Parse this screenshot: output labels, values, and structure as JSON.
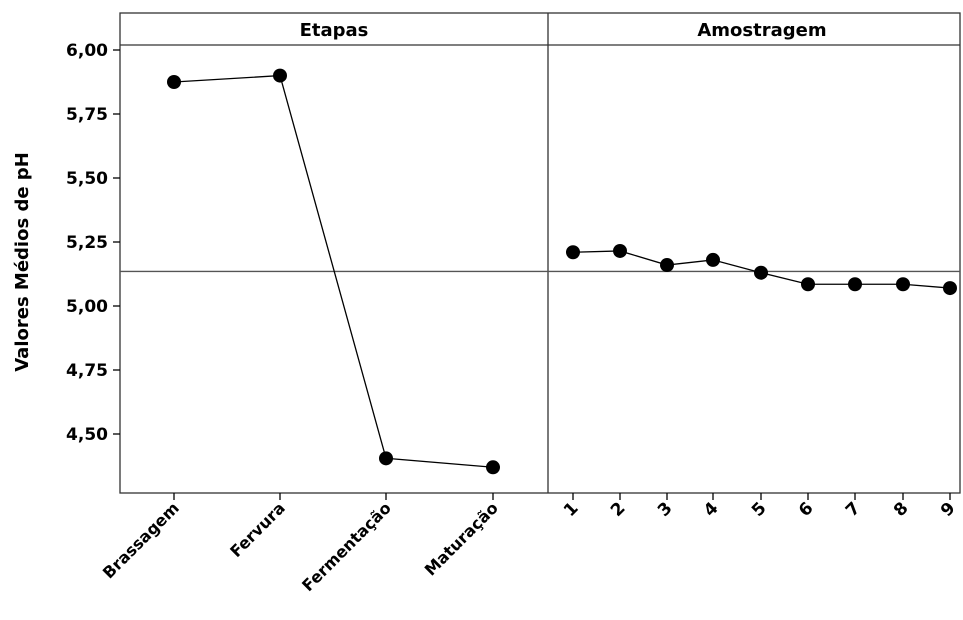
{
  "chart_data": {
    "type": "line",
    "ylabel": "Valores Médios de pH",
    "ylim": [
      4.27,
      6.04
    ],
    "yticks": [
      "6,00",
      "5,75",
      "5,50",
      "5,25",
      "5,00",
      "4,75",
      "4,50"
    ],
    "ytick_values": [
      6.0,
      5.75,
      5.5,
      5.25,
      5.0,
      4.75,
      4.5
    ],
    "reference_line": 5.135,
    "marker_color": "#000000",
    "panels": [
      {
        "title": "Etapas",
        "categories": [
          "Brassagem",
          "Fervura",
          "Fermentação",
          "Maturação"
        ],
        "values": [
          5.875,
          5.9,
          4.405,
          4.37
        ]
      },
      {
        "title": "Amostragem",
        "categories": [
          "1",
          "2",
          "3",
          "4",
          "5",
          "6",
          "7",
          "8",
          "9"
        ],
        "values": [
          5.21,
          5.215,
          5.16,
          5.18,
          5.13,
          5.085,
          5.085,
          5.085,
          5.07
        ]
      }
    ]
  }
}
